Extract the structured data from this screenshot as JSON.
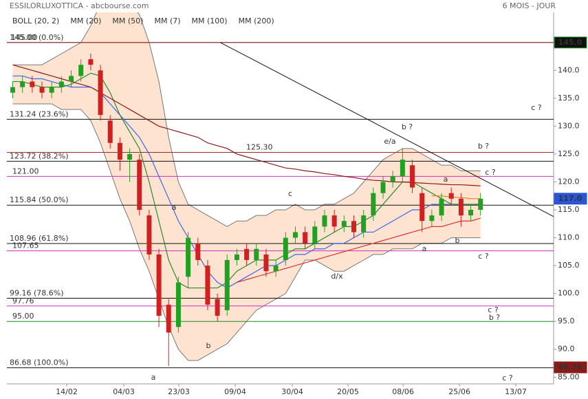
{
  "chart_data": {
    "type": "candlestick",
    "title": "ESSILORLUXOTTICA - abcbourse.com",
    "subtitle": "6 MOIS - JOUR",
    "x": [
      0,
      1,
      2,
      3,
      4,
      5,
      6,
      7,
      8,
      9,
      10,
      11,
      12,
      13,
      14,
      15,
      16,
      17,
      18,
      19,
      20,
      21,
      22,
      23,
      24,
      25,
      26,
      27,
      28,
      29,
      30,
      31,
      32,
      33,
      34,
      35,
      36,
      37,
      38,
      39,
      40,
      41,
      42,
      43,
      44,
      45,
      46,
      47,
      48
    ],
    "open": [
      136,
      137,
      138,
      137,
      136,
      137,
      138,
      139,
      142,
      140,
      131,
      127,
      124,
      124,
      114,
      107,
      98,
      94,
      103,
      109,
      105,
      99,
      97,
      106,
      108,
      106,
      107,
      104,
      106,
      110,
      111,
      109,
      112,
      114,
      112,
      113,
      111,
      114,
      118,
      120,
      121,
      123,
      118,
      113,
      114,
      118,
      117,
      114,
      115
    ],
    "high": [
      138,
      139,
      139,
      138,
      138,
      139,
      140,
      142,
      143,
      141,
      132,
      128,
      126,
      125,
      115,
      108,
      99,
      103,
      111,
      110,
      106,
      100,
      107,
      108,
      109,
      109,
      108,
      106,
      111,
      112,
      112,
      113,
      115,
      115,
      114,
      114,
      115,
      119,
      121,
      122,
      126,
      124,
      119,
      115,
      118,
      119,
      118,
      116,
      118
    ],
    "low": [
      135,
      136,
      136,
      135,
      135,
      136,
      137,
      138,
      140,
      131,
      126,
      122,
      120,
      114,
      106,
      94,
      87,
      93,
      101,
      105,
      97,
      95,
      96,
      105,
      105,
      105,
      103,
      103,
      105,
      109,
      108,
      108,
      111,
      111,
      111,
      110,
      110,
      113,
      117,
      119,
      120,
      118,
      111,
      112,
      113,
      116,
      112,
      113,
      114
    ],
    "close": [
      137,
      138,
      137,
      136,
      137,
      138,
      139,
      141,
      141,
      132,
      127,
      124,
      125,
      115,
      107,
      96,
      93,
      102,
      110,
      106,
      98,
      96,
      106,
      107,
      106,
      108,
      104,
      105,
      110,
      111,
      109,
      112,
      114,
      112,
      113,
      111,
      114,
      118,
      120,
      121,
      124,
      119,
      113,
      114,
      117,
      117,
      114,
      115,
      117
    ],
    "up_color": "#22a022",
    "down_color": "#d02020",
    "band": {
      "name": "BOLL (20, 2)",
      "color": "#777777",
      "fill": "#fde3d0",
      "upper": [
        141,
        141,
        141,
        141,
        142,
        143,
        144,
        145,
        148,
        152,
        153,
        153,
        152,
        150,
        145,
        138,
        128,
        120,
        116,
        115,
        114,
        113,
        112,
        113,
        113,
        114,
        114,
        115,
        115,
        116,
        115,
        115,
        116,
        116,
        117,
        118,
        120,
        122,
        124,
        125,
        126,
        126,
        125,
        124,
        123,
        123,
        122,
        122,
        122
      ],
      "lower": [
        134,
        134,
        134,
        134,
        134,
        133,
        133,
        133,
        131,
        127,
        122,
        117,
        113,
        108,
        104,
        99,
        94,
        90,
        88,
        88,
        89,
        90,
        91,
        93,
        95,
        97,
        98,
        99,
        100,
        103,
        106,
        106,
        105,
        104,
        104,
        105,
        106,
        107,
        107,
        108,
        108,
        108,
        109,
        109,
        109,
        110,
        110,
        110,
        110
      ]
    },
    "series": [
      {
        "name": "MM (20)",
        "color": "#3a66f0",
        "values": [
          139,
          139,
          138.5,
          138.5,
          138,
          137.5,
          137,
          137,
          137,
          136,
          134,
          132,
          130,
          128,
          125,
          121,
          117,
          113,
          110,
          107,
          104,
          102,
          101,
          102,
          103,
          104,
          105,
          105,
          106,
          107,
          107,
          108,
          108,
          109,
          109,
          110,
          111,
          111,
          112,
          113,
          114,
          115,
          115,
          116,
          116,
          116,
          116,
          116,
          116
        ]
      },
      {
        "name": "MM (50)",
        "color": "#e03030",
        "values": [
          null,
          null,
          null,
          null,
          null,
          null,
          null,
          null,
          null,
          null,
          null,
          null,
          null,
          null,
          null,
          null,
          null,
          null,
          null,
          null,
          null,
          null,
          null,
          102,
          102.5,
          103,
          103.5,
          104,
          104.5,
          105,
          105.5,
          106,
          106.5,
          107,
          107.5,
          108,
          108.5,
          109,
          109.5,
          110,
          110.5,
          111,
          111.5,
          112,
          112,
          112.5,
          113,
          113,
          113.5
        ]
      },
      {
        "name": "MM (7)",
        "color": "#2a8a2a",
        "values": [
          138,
          138,
          137.5,
          137,
          137,
          137,
          137.5,
          138.5,
          139.5,
          139,
          136,
          132,
          129,
          126,
          120,
          113,
          106,
          102,
          101,
          101,
          101,
          101,
          102,
          104,
          105,
          106,
          106,
          106,
          107,
          108,
          108,
          109,
          110,
          111,
          112,
          112,
          113,
          114,
          116,
          118,
          120,
          120,
          119,
          118,
          117,
          116,
          116,
          116,
          116
        ]
      },
      {
        "name": "MM (100)",
        "color": "#f08020",
        "values": [
          null,
          null,
          null,
          null,
          null,
          null,
          null,
          null,
          null,
          null,
          null,
          null,
          null,
          null,
          null,
          null,
          null,
          null,
          null,
          null,
          null,
          null,
          null,
          null,
          null,
          null,
          null,
          null,
          null,
          null,
          null,
          null,
          null,
          null,
          null,
          null,
          null,
          null,
          null,
          null,
          null,
          null,
          null,
          117.5,
          117.5,
          117.3,
          117.2,
          117,
          117
        ]
      },
      {
        "name": "MM (200)",
        "color": "#8b1a1a",
        "values": [
          141,
          140.5,
          140,
          139.5,
          139,
          138.5,
          138,
          137.5,
          137,
          136,
          135,
          134,
          133,
          132,
          131,
          130,
          129.5,
          129,
          128.5,
          128,
          127,
          126.5,
          126,
          125,
          124.5,
          124,
          123.5,
          123,
          122.5,
          122.3,
          122,
          121.8,
          121.5,
          121.3,
          121,
          120.8,
          120.5,
          120.3,
          120.2,
          120,
          120,
          119.9,
          119.8,
          119.7,
          119.6,
          119.5,
          119.5,
          119.4,
          119.3
        ]
      }
    ],
    "xlim": [
      -0.6,
      55.5
    ],
    "xticks": [
      {
        "value": 5.54,
        "label": "14/02"
      },
      {
        "value": 11.4,
        "label": "04/03"
      },
      {
        "value": 17.04,
        "label": "23/03"
      },
      {
        "value": 22.83,
        "label": "09/04"
      },
      {
        "value": 28.69,
        "label": "30/04"
      },
      {
        "value": 34.4,
        "label": "20/05"
      },
      {
        "value": 40.05,
        "label": "08/06"
      },
      {
        "value": 45.84,
        "label": "25/06"
      },
      {
        "value": 51.62,
        "label": "13/07"
      }
    ],
    "ylim": [
      83.8,
      150.4
    ],
    "yticks": [
      {
        "value": 85,
        "label": "85.00"
      },
      {
        "value": 90,
        "label": "90.0"
      },
      {
        "value": 95,
        "label": "95.0"
      },
      {
        "value": 100,
        "label": "100.0"
      },
      {
        "value": 105,
        "label": "105.0"
      },
      {
        "value": 110,
        "label": "110.0"
      },
      {
        "value": 115,
        "label": "115.0"
      },
      {
        "value": 120,
        "label": "120.0"
      },
      {
        "value": 125,
        "label": "125.0"
      },
      {
        "value": 130,
        "label": "130.0"
      },
      {
        "value": 135,
        "label": "135.0"
      },
      {
        "value": 140,
        "label": "140.0"
      }
    ],
    "levels": [
      {
        "value": 145,
        "label": "145.00 (0.0%)",
        "color": "#111111"
      },
      {
        "value": 145,
        "label": "145.00",
        "color": "#b03030"
      },
      {
        "value": 131.24,
        "label": "131.24 (23.6%)",
        "color": "#111111"
      },
      {
        "value": 125.3,
        "label": "125.30",
        "color": "#a02828"
      },
      {
        "value": 123.72,
        "label": "123.72 (38.2%)",
        "color": "#111111"
      },
      {
        "value": 121,
        "label": "121.00",
        "color": "#d030c0"
      },
      {
        "value": 115.84,
        "label": "115.84 (50.0%)",
        "color": "#111111"
      },
      {
        "value": 108.96,
        "label": "108.96 (61.8%)",
        "color": "#111111"
      },
      {
        "value": 107.65,
        "label": "107.65",
        "color": "#d030c0"
      },
      {
        "value": 99.16,
        "label": "99.16 (78.6%)",
        "color": "#111111"
      },
      {
        "value": 97.76,
        "label": "97.76",
        "color": "#d030c0"
      },
      {
        "value": 95,
        "label": "95.00",
        "color": "#228822"
      },
      {
        "value": 86.68,
        "label": "86.68 (100.0%)",
        "color": "#111111"
      }
    ],
    "trendline": {
      "x": [
        21.3,
        55.5
      ],
      "y": [
        145,
        113.8
      ],
      "color": "#111111"
    },
    "price_tags": [
      {
        "value": 145,
        "label": "145.0",
        "color": "#111111"
      },
      {
        "value": 117,
        "label": "117.0",
        "color": "#2a55d5"
      },
      {
        "value": 86.76,
        "label": "86.76",
        "color": "#8b1a1a"
      }
    ],
    "annotations": [
      {
        "text": "b ?",
        "color": "#b02020"
      },
      {
        "text": "e/a",
        "color": "#2a2a90"
      },
      {
        "text": "c ?",
        "color": "#2a2a90"
      },
      {
        "text": "b ?",
        "color": "#b02020"
      },
      {
        "text": "c ?",
        "color": "#2a2a90"
      },
      {
        "text": "a",
        "color": "#2a2a90"
      },
      {
        "text": "c",
        "color": "#2a2a90"
      },
      {
        "text": "a",
        "color": "#2a2a90"
      },
      {
        "text": "d/x",
        "color": "#2a2a90"
      },
      {
        "text": "b",
        "color": "#2a2a90"
      },
      {
        "text": "b",
        "color": "#2a2a90"
      },
      {
        "text": "a",
        "color": "#b02020"
      },
      {
        "text": "c ?",
        "color": "#b02020"
      },
      {
        "text": "c ?",
        "color": "#b02020"
      },
      {
        "text": "b ?",
        "color": "#2a2a90"
      },
      {
        "text": "a",
        "color": "#b02020"
      },
      {
        "text": "c ?",
        "color": "#b02020"
      }
    ]
  }
}
